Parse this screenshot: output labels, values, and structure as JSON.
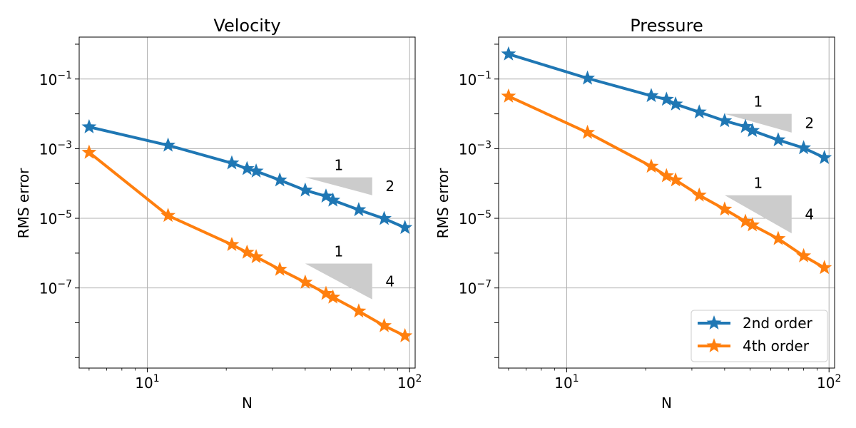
{
  "chart_data": [
    {
      "type": "line",
      "title": "Velocity",
      "xlabel": "N",
      "ylabel": "RMS error",
      "xscale": "log",
      "yscale": "log",
      "xlim": [
        5.5,
        105
      ],
      "ylim": [
        5e-10,
        1.6
      ],
      "grid": true,
      "x_tick_labels": [
        {
          "base": "10",
          "exp": "1"
        },
        {
          "base": "10",
          "exp": "2"
        }
      ],
      "y_tick_labels": [
        {
          "base": "10",
          "exp": "−1"
        },
        {
          "base": "10",
          "exp": "−3"
        },
        {
          "base": "10",
          "exp": "−5"
        },
        {
          "base": "10",
          "exp": "−7"
        }
      ],
      "x": [
        6,
        12,
        21,
        24,
        26,
        32,
        40,
        48,
        51,
        64,
        80,
        96
      ],
      "series": [
        {
          "name": "2nd order",
          "values": [
            0.0042,
            0.00125,
            0.000385,
            0.000265,
            0.000225,
            0.000125,
            6.4e-05,
            4.3e-05,
            3.3e-05,
            1.75e-05,
            9.8e-06,
            5.4e-06
          ]
        },
        {
          "name": "4th order",
          "values": [
            0.00078,
            1.2e-05,
            1.75e-06,
            1.05e-06,
            7.8e-07,
            3.4e-07,
            1.45e-07,
            6.9e-08,
            5.4e-08,
            2.15e-08,
            8.2e-09,
            4.2e-09
          ]
        }
      ],
      "slope_triangles": [
        {
          "run_label": "1",
          "rise_label": "2",
          "x0": 40,
          "x1": 72,
          "y_top": 0.00015,
          "y_bottom": 4.6e-05
        },
        {
          "run_label": "1",
          "rise_label": "4",
          "x0": 40,
          "x1": 72,
          "y_top": 5e-07,
          "y_bottom": 4.7e-08
        }
      ]
    },
    {
      "type": "line",
      "title": "Pressure",
      "xlabel": "N",
      "ylabel": "RMS error",
      "xscale": "log",
      "yscale": "log",
      "xlim": [
        5.5,
        105
      ],
      "ylim": [
        5e-10,
        1.6
      ],
      "grid": true,
      "x_tick_labels": [
        {
          "base": "10",
          "exp": "1"
        },
        {
          "base": "10",
          "exp": "2"
        }
      ],
      "y_tick_labels": [
        {
          "base": "10",
          "exp": "−1"
        },
        {
          "base": "10",
          "exp": "−3"
        },
        {
          "base": "10",
          "exp": "−5"
        },
        {
          "base": "10",
          "exp": "−7"
        }
      ],
      "x": [
        6,
        12,
        21,
        24,
        26,
        32,
        40,
        48,
        51,
        64,
        80,
        96
      ],
      "series": [
        {
          "name": "2nd order",
          "values": [
            0.52,
            0.105,
            0.033,
            0.026,
            0.019,
            0.0112,
            0.0063,
            0.0043,
            0.0033,
            0.00178,
            0.00105,
            0.00055
          ]
        },
        {
          "name": "4th order",
          "values": [
            0.032,
            0.0029,
            0.00031,
            0.000165,
            0.000125,
            4.6e-05,
            1.82e-05,
            8.1e-06,
            6.4e-06,
            2.6e-06,
            8.3e-07,
            3.8e-07
          ]
        }
      ],
      "slope_triangles": [
        {
          "run_label": "1",
          "rise_label": "2",
          "x0": 40,
          "x1": 72,
          "y_top": 0.01,
          "y_bottom": 0.0029
        },
        {
          "run_label": "1",
          "rise_label": "4",
          "x0": 40,
          "x1": 72,
          "y_top": 4.6e-05,
          "y_bottom": 3.7e-06
        }
      ],
      "legend": {
        "position": "lower-right",
        "entries": [
          "2nd order",
          "4th order"
        ]
      }
    }
  ],
  "colors": {
    "series_1": "#1f77b4",
    "series_2": "#ff7f0e",
    "grid": "#b0b0b0",
    "triangle": "#cccccc"
  }
}
